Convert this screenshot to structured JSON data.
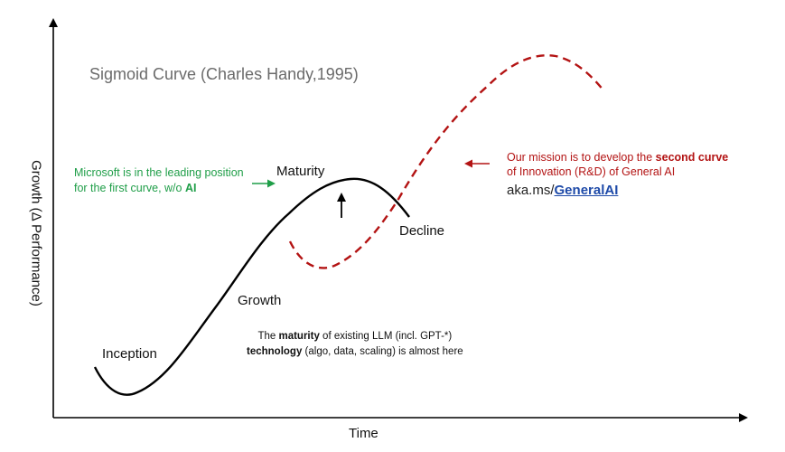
{
  "title": "Sigmoid Curve (Charles Handy,1995)",
  "axes": {
    "xlabel": "Time",
    "ylabel": "Growth (Δ Performance)"
  },
  "stages": {
    "inception": "Inception",
    "growth": "Growth",
    "maturity": "Maturity",
    "decline": "Decline"
  },
  "microsoft_note": {
    "line1": "Microsoft is in the leading position",
    "line2_prefix": "for the first curve, w/o ",
    "line2_bold": "AI"
  },
  "mission_note": {
    "line1_prefix": "Our mission is to develop the ",
    "line1_bold": "second curve",
    "line2": "of Innovation (R&D) of General AI"
  },
  "link": {
    "prefix": "aka.ms/",
    "text": "GeneralAI"
  },
  "llm_note": {
    "line1_prefix": "The ",
    "line1_bold": "maturity",
    "line1_suffix": " of existing LLM (incl. GPT-*)",
    "line2_bold": "technology",
    "line2_suffix": " (algo, data, scaling) is almost here"
  },
  "colors": {
    "curve1": "#000000",
    "curve2": "#b31313",
    "microsoft_note": "#1f9e48",
    "mission_note": "#b31313",
    "link": "#1e4aa8",
    "title": "#6b6b6b"
  }
}
